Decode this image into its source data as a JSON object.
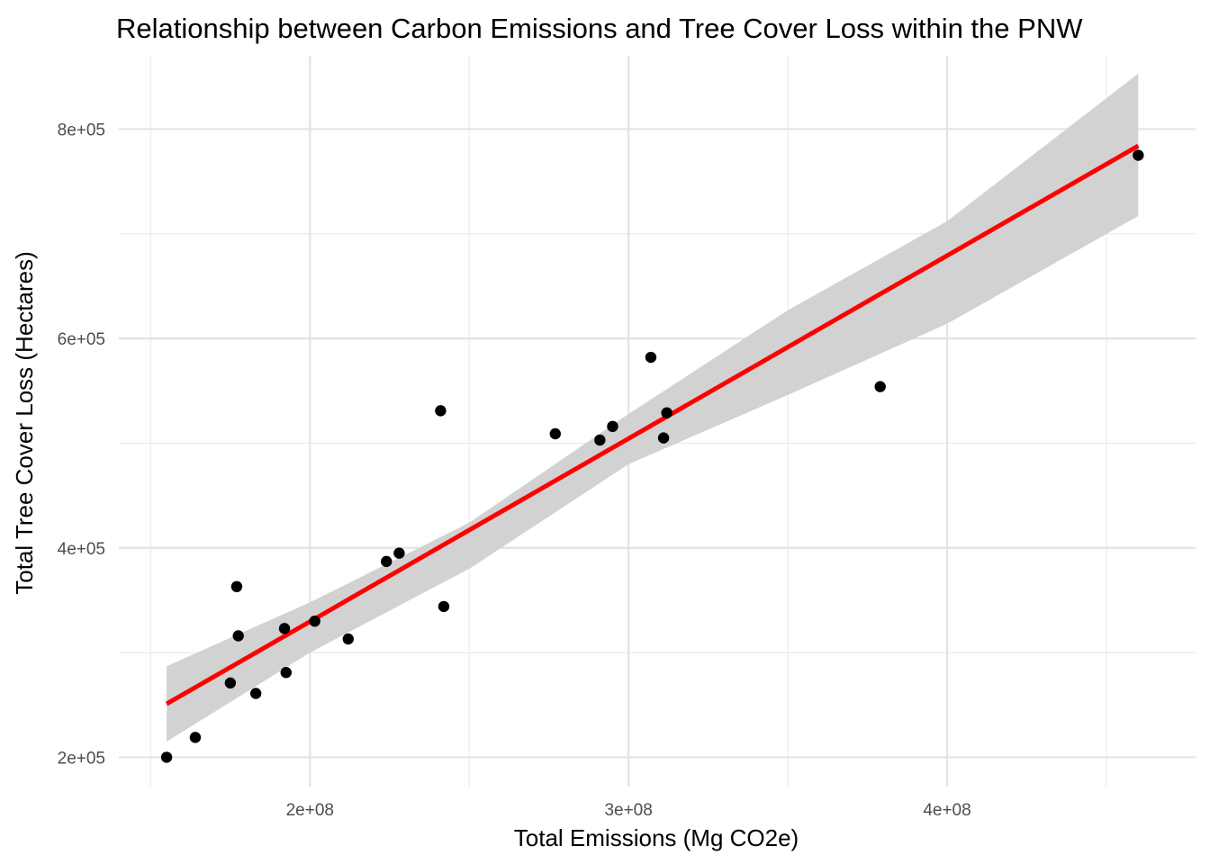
{
  "chart_data": {
    "type": "scatter",
    "title": "Relationship between Carbon Emissions and Tree Cover Loss within the PNW",
    "xlabel": "Total Emissions (Mg CO2e)",
    "ylabel": "Total Tree Cover Loss (Hectares)",
    "x_ticks": [
      {
        "value": 200000000,
        "label": "2e+08"
      },
      {
        "value": 300000000,
        "label": "3e+08"
      },
      {
        "value": 400000000,
        "label": "4e+08"
      }
    ],
    "y_ticks": [
      {
        "value": 200000,
        "label": "2e+05"
      },
      {
        "value": 400000,
        "label": "4e+05"
      },
      {
        "value": 600000,
        "label": "6e+05"
      },
      {
        "value": 800000,
        "label": "8e+05"
      }
    ],
    "xlim": [
      140000000,
      478000000
    ],
    "ylim": [
      172000,
      870000
    ],
    "grid": true,
    "points": [
      {
        "x": 155000000,
        "y": 200000
      },
      {
        "x": 164000000,
        "y": 219000
      },
      {
        "x": 175000000,
        "y": 271000
      },
      {
        "x": 177000000,
        "y": 363000
      },
      {
        "x": 177500000,
        "y": 316000
      },
      {
        "x": 183000000,
        "y": 261000
      },
      {
        "x": 192000000,
        "y": 323000
      },
      {
        "x": 192500000,
        "y": 281000
      },
      {
        "x": 201500000,
        "y": 330000
      },
      {
        "x": 212000000,
        "y": 313000
      },
      {
        "x": 224000000,
        "y": 387000
      },
      {
        "x": 228000000,
        "y": 395000
      },
      {
        "x": 241000000,
        "y": 531000
      },
      {
        "x": 242000000,
        "y": 344000
      },
      {
        "x": 277000000,
        "y": 509000
      },
      {
        "x": 291000000,
        "y": 503000
      },
      {
        "x": 295000000,
        "y": 516000
      },
      {
        "x": 307000000,
        "y": 582000
      },
      {
        "x": 311000000,
        "y": 505000
      },
      {
        "x": 312000000,
        "y": 529000
      },
      {
        "x": 379000000,
        "y": 554000
      },
      {
        "x": 460000000,
        "y": 775000
      }
    ],
    "regression_line": {
      "color": "#ff0000",
      "x": [
        155000000,
        460000000
      ],
      "y": [
        251000,
        784000
      ]
    },
    "confidence_band": {
      "color": "#d2d2d2",
      "x": [
        155000000,
        200000000,
        250000000,
        300000000,
        350000000,
        400000000,
        460000000
      ],
      "upper": [
        287000,
        348000,
        424000,
        528000,
        627000,
        712000,
        853000
      ],
      "lower": [
        215000,
        300000,
        380000,
        480000,
        546000,
        614000,
        717000
      ]
    },
    "point_color": "#000000"
  }
}
